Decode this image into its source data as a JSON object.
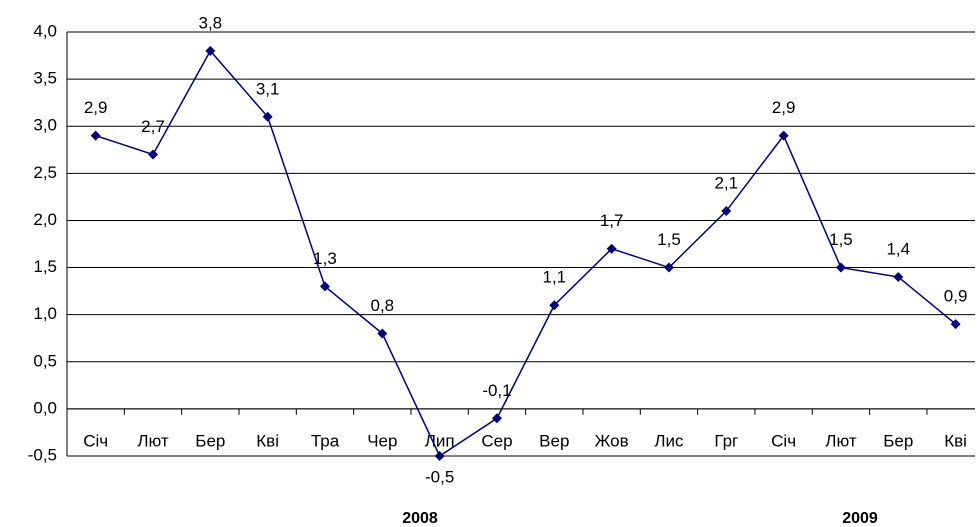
{
  "chart_data": {
    "type": "line",
    "categories": [
      "Січ",
      "Лют",
      "Бер",
      "Кві",
      "Тра",
      "Чер",
      "Лип",
      "Сер",
      "Вер",
      "Жов",
      "Лис",
      "Грг",
      "Січ",
      "Лют",
      "Бер",
      "Кві"
    ],
    "series": [
      {
        "color": "#000080",
        "values": [
          2.9,
          2.7,
          3.8,
          3.1,
          1.3,
          0.8,
          -0.5,
          -0.1,
          1.1,
          1.7,
          1.5,
          2.1,
          2.9,
          1.5,
          1.4,
          0.9
        ],
        "value_labels": [
          "2,9",
          "2,7",
          "3,8",
          "3,1",
          "1,3",
          "0,8",
          "-0,5",
          "-0,1",
          "1,1",
          "1,7",
          "1,5",
          "2,1",
          "2,9",
          "1,5",
          "1,4",
          "0,9"
        ]
      }
    ],
    "annotations": [
      "2008",
      "2009"
    ],
    "ylim": [
      -0.5,
      4.0
    ],
    "yticks": [
      {
        "value": -0.5,
        "label": "-0,5"
      },
      {
        "value": 0,
        "label": "0,0"
      },
      {
        "value": 0.5,
        "label": "0,5"
      },
      {
        "value": 1.0,
        "label": "1,0"
      },
      {
        "value": 1.5,
        "label": "1,5"
      },
      {
        "value": 2.0,
        "label": "2,0"
      },
      {
        "value": 2.5,
        "label": "2,5"
      },
      {
        "value": 3.0,
        "label": "3,0"
      },
      {
        "value": 3.5,
        "label": "3,5"
      },
      {
        "value": 4.0,
        "label": "4,0"
      }
    ],
    "grid": true
  }
}
